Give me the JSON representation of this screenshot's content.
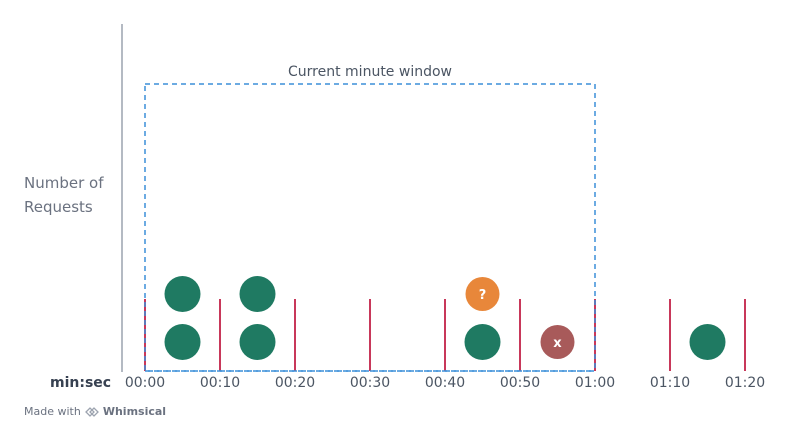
{
  "diagram": {
    "y_axis_label_line1": "Number of",
    "y_axis_label_line2": "Requests",
    "x_axis_title": "min:sec",
    "ticks": [
      "00:00",
      "00:10",
      "00:20",
      "00:30",
      "00:40",
      "00:50",
      "01:00",
      "01:10",
      "01:20"
    ],
    "window_label": "Current minute window",
    "window_range": [
      "00:00",
      "01:00"
    ],
    "requests": [
      {
        "time": "00:05",
        "stack": 0,
        "status": "accepted",
        "label": ""
      },
      {
        "time": "00:05",
        "stack": 1,
        "status": "accepted",
        "label": ""
      },
      {
        "time": "00:15",
        "stack": 0,
        "status": "accepted",
        "label": ""
      },
      {
        "time": "00:15",
        "stack": 1,
        "status": "accepted",
        "label": ""
      },
      {
        "time": "00:45",
        "stack": 0,
        "status": "accepted",
        "label": ""
      },
      {
        "time": "00:45",
        "stack": 1,
        "status": "pending",
        "label": "?"
      },
      {
        "time": "00:55",
        "stack": 0,
        "status": "rejected",
        "label": "x"
      },
      {
        "time": "01:15",
        "stack": 0,
        "status": "accepted",
        "label": ""
      }
    ],
    "colors": {
      "accepted": "#1f7a62",
      "pending": "#e8873a",
      "rejected": "#a85a5a",
      "tick_line": "#c8385a",
      "window_border": "#3b8fd9",
      "axis": "#9ca3af"
    }
  },
  "footer": {
    "prefix": "Made with",
    "brand": "Whimsical"
  }
}
